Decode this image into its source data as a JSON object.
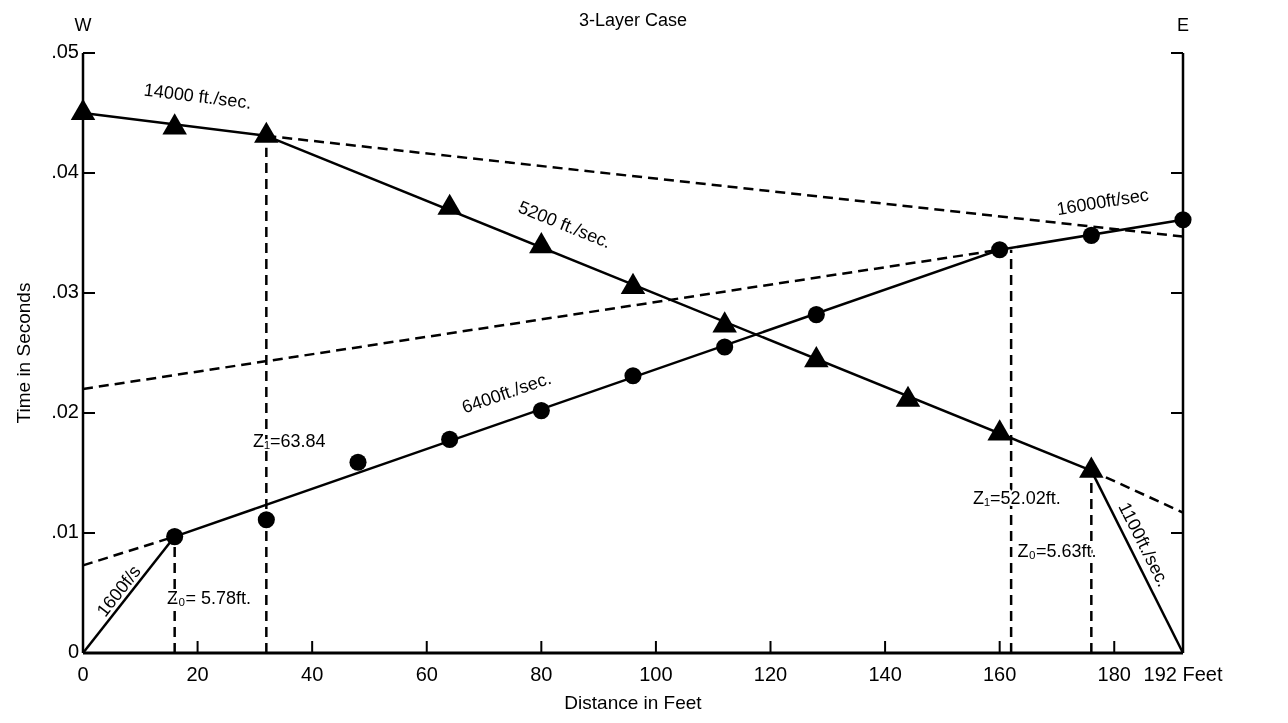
{
  "chart_data": {
    "type": "line",
    "title": "3-Layer Case",
    "xlabel": "Distance in Feet",
    "ylabel": "Time in Seconds",
    "xlim": [
      0,
      192
    ],
    "ylim": [
      0,
      0.05
    ],
    "xticks": [
      0,
      20,
      40,
      60,
      80,
      100,
      120,
      140,
      160,
      180,
      {
        "value": 192,
        "label": "192 Feet"
      }
    ],
    "yticks": [
      0,
      {
        "value": 0.01,
        "label": ".01"
      },
      {
        "value": 0.02,
        "label": ".02"
      },
      {
        "value": 0.03,
        "label": ".03"
      },
      {
        "value": 0.04,
        "label": ".04"
      },
      {
        "value": 0.05,
        "label": ".05"
      }
    ],
    "grid": false,
    "series": [
      {
        "color": "#000000",
        "line_style": "solid",
        "marker": "none",
        "x": [
          0,
          32
        ],
        "values": [
          0.045,
          0.0431
        ]
      },
      {
        "color": "#000000",
        "line_style": "solid",
        "marker": "none",
        "x": [
          32,
          176
        ],
        "values": [
          0.0431,
          0.0152
        ]
      },
      {
        "color": "#000000",
        "line_style": "solid",
        "marker": "none",
        "x": [
          176,
          192
        ],
        "values": [
          0.0152,
          0
        ]
      },
      {
        "color": "#000000",
        "line_style": "dashed",
        "marker": "none",
        "x": [
          32,
          192
        ],
        "values": [
          0.0431,
          0.0347
        ]
      },
      {
        "color": "#000000",
        "line_style": "dashed",
        "marker": "none",
        "x": [
          176,
          192
        ],
        "values": [
          0.0152,
          0.0117
        ]
      },
      {
        "color": "#000000",
        "line_style": "solid",
        "marker": "none",
        "x": [
          0,
          16
        ],
        "values": [
          0,
          0.0097
        ]
      },
      {
        "color": "#000000",
        "line_style": "solid",
        "marker": "none",
        "x": [
          16,
          160
        ],
        "values": [
          0.0097,
          0.0336
        ]
      },
      {
        "color": "#000000",
        "line_style": "solid",
        "marker": "none",
        "x": [
          160,
          192
        ],
        "values": [
          0.0336,
          0.0361
        ]
      },
      {
        "color": "#000000",
        "line_style": "dashed",
        "marker": "none",
        "x": [
          0,
          16
        ],
        "values": [
          0.0073,
          0.0097
        ]
      },
      {
        "color": "#000000",
        "line_style": "dashed",
        "marker": "none",
        "x": [
          0,
          160
        ],
        "values": [
          0.022,
          0.0336
        ]
      },
      {
        "color": "#000000",
        "line_style": "dashed",
        "marker": "none",
        "x": [
          16,
          16
        ],
        "values": [
          0,
          0.0097
        ]
      },
      {
        "color": "#000000",
        "line_style": "dashed",
        "marker": "none",
        "x": [
          32,
          32
        ],
        "values": [
          0,
          0.0421
        ]
      },
      {
        "color": "#000000",
        "line_style": "dashed",
        "marker": "none",
        "x": [
          162,
          162
        ],
        "values": [
          0,
          0.0336
        ]
      },
      {
        "color": "#000000",
        "line_style": "dashed",
        "marker": "none",
        "x": [
          176,
          176
        ],
        "values": [
          0,
          0.0142
        ]
      },
      {
        "type": "scatter",
        "color": "#000000",
        "marker": "triangle",
        "x": [
          0,
          16,
          32,
          64,
          80,
          96,
          112,
          128,
          144,
          160,
          176
        ],
        "values": [
          0.045,
          0.0438,
          0.0431,
          0.0371,
          0.0339,
          0.0305,
          0.0273,
          0.0244,
          0.0211,
          0.0183,
          0.0152
        ]
      },
      {
        "type": "scatter",
        "color": "#000000",
        "marker": "circle",
        "x": [
          16,
          32,
          48,
          64,
          80,
          96,
          112,
          128,
          160,
          176,
          192
        ],
        "values": [
          0.0097,
          0.0111,
          0.0159,
          0.0178,
          0.0202,
          0.0231,
          0.0255,
          0.0282,
          0.0336,
          0.0348,
          0.0361
        ]
      }
    ],
    "annotations": [
      "W",
      "E",
      "14000 ft./sec.",
      "5200 ft./sec.",
      "6400ft./sec.",
      "16000ft/sec",
      "1600f/s",
      "1100ft./sec.",
      "Z₁=63.84",
      "Z₀= 5.78ft.",
      "Z₁=52.02ft.",
      "Z₀=5.63ft."
    ]
  }
}
